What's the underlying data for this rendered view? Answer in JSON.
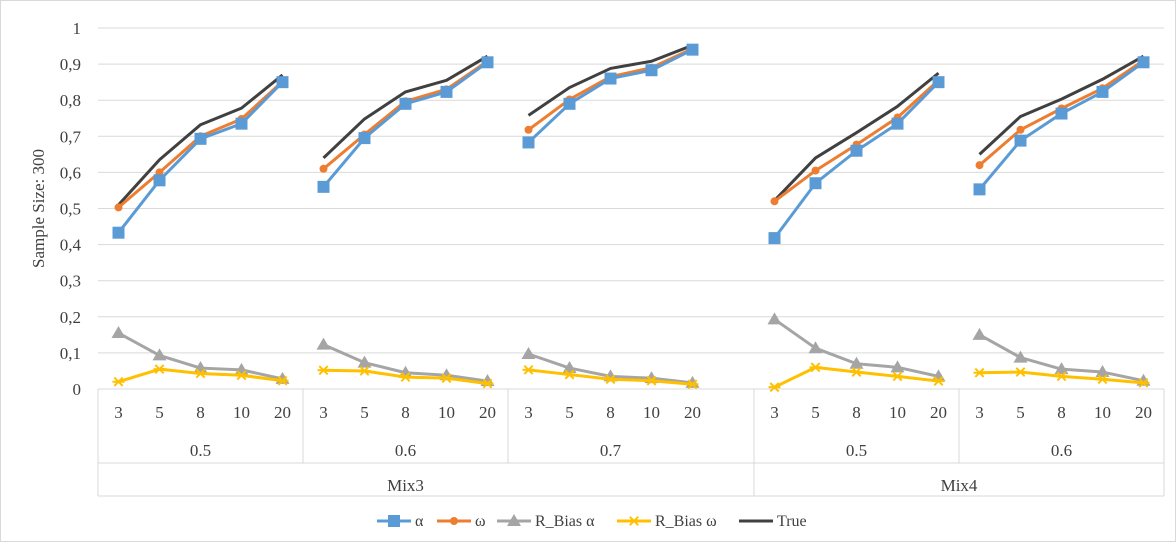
{
  "chart_data": {
    "type": "line",
    "title": "",
    "xlabel": "",
    "ylabel": "Sample Size: 300",
    "ylim": [
      0,
      1
    ],
    "yticks": [
      "0",
      "0,1",
      "0,2",
      "0,3",
      "0,4",
      "0,5",
      "0,6",
      "0,7",
      "0,8",
      "0,9",
      "1"
    ],
    "grid": true,
    "legend_position": "bottom",
    "groups": [
      {
        "name": "Mix3",
        "subgroups": [
          {
            "name": "0.5",
            "x": [
              "3",
              "5",
              "8",
              "10",
              "20"
            ]
          },
          {
            "name": "0.6",
            "x": [
              "3",
              "5",
              "8",
              "10",
              "20"
            ]
          },
          {
            "name": "0.7",
            "x": [
              "3",
              "5",
              "8",
              "10",
              "20"
            ]
          }
        ]
      },
      {
        "name": "Mix4",
        "subgroups": [
          {
            "name": "0.5",
            "x": [
              "3",
              "5",
              "8",
              "10",
              "20"
            ]
          },
          {
            "name": "0.6",
            "x": [
              "3",
              "5",
              "8",
              "10",
              "20"
            ]
          }
        ]
      }
    ],
    "series": [
      {
        "name": "α",
        "color": "#5b9bd5",
        "marker": "square",
        "values": [
          [
            0.433,
            0.578,
            0.693,
            0.735,
            0.85
          ],
          [
            0.56,
            0.695,
            0.79,
            0.823,
            0.905
          ],
          [
            0.683,
            0.79,
            0.86,
            0.883,
            0.94
          ],
          [
            0.418,
            0.57,
            0.66,
            0.735,
            0.85
          ],
          [
            0.553,
            0.688,
            0.763,
            0.823,
            0.905
          ]
        ]
      },
      {
        "name": "ω",
        "color": "#ed7d31",
        "marker": "circle",
        "values": [
          [
            0.503,
            0.6,
            0.7,
            0.748,
            0.852
          ],
          [
            0.61,
            0.705,
            0.797,
            0.83,
            0.908
          ],
          [
            0.718,
            0.802,
            0.865,
            0.89,
            0.943
          ],
          [
            0.52,
            0.605,
            0.677,
            0.752,
            0.855
          ],
          [
            0.62,
            0.718,
            0.777,
            0.833,
            0.91
          ]
        ]
      },
      {
        "name": "R_Bias α",
        "color": "#a5a5a5",
        "marker": "triangle",
        "values": [
          [
            0.155,
            0.093,
            0.058,
            0.053,
            0.028
          ],
          [
            0.123,
            0.073,
            0.045,
            0.038,
            0.022
          ],
          [
            0.097,
            0.058,
            0.035,
            0.03,
            0.017
          ],
          [
            0.193,
            0.113,
            0.07,
            0.06,
            0.035
          ],
          [
            0.15,
            0.087,
            0.055,
            0.047,
            0.023
          ]
        ]
      },
      {
        "name": "R_Bias ω",
        "color": "#ffc000",
        "marker": "star",
        "values": [
          [
            0.02,
            0.055,
            0.043,
            0.038,
            0.023
          ],
          [
            0.052,
            0.05,
            0.033,
            0.03,
            0.015
          ],
          [
            0.053,
            0.04,
            0.027,
            0.023,
            0.013
          ],
          [
            0.005,
            0.06,
            0.047,
            0.035,
            0.022
          ],
          [
            0.045,
            0.047,
            0.035,
            0.027,
            0.017
          ]
        ]
      },
      {
        "name": "True",
        "color": "#404040",
        "marker": "none",
        "values": [
          [
            0.51,
            0.635,
            0.732,
            0.778,
            0.87
          ],
          [
            0.64,
            0.748,
            0.823,
            0.855,
            0.922
          ],
          [
            0.758,
            0.835,
            0.888,
            0.908,
            0.952
          ],
          [
            0.522,
            0.64,
            0.71,
            0.783,
            0.875
          ],
          [
            0.65,
            0.755,
            0.803,
            0.858,
            0.922
          ]
        ]
      }
    ]
  }
}
